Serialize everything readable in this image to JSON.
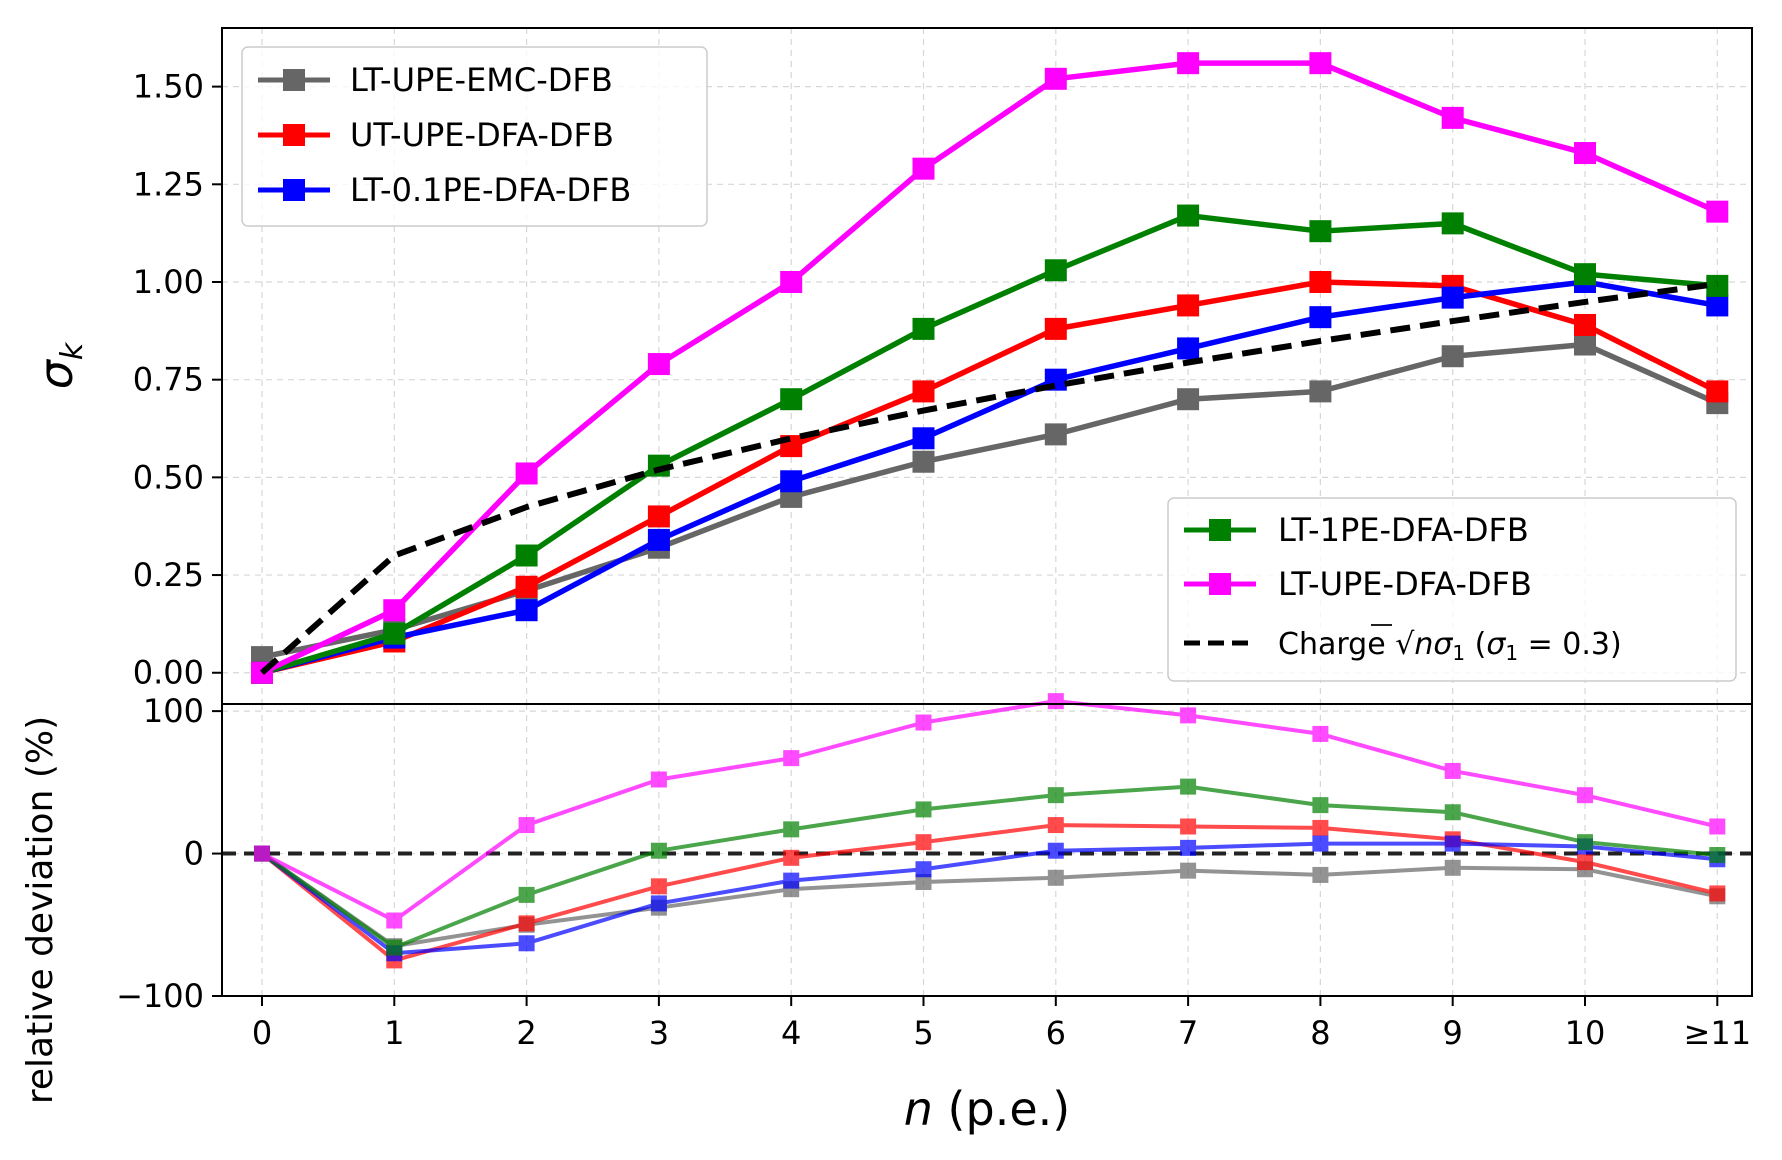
{
  "chart_data": [
    {
      "type": "line",
      "panel": "top",
      "title": "",
      "xlabel": "",
      "ylabel": "σ_k",
      "ylabel_display": "σ",
      "ylabel_sub": "k",
      "grid": true,
      "ylim": [
        -0.08,
        1.65
      ],
      "yticks": [
        0.0,
        0.25,
        0.5,
        0.75,
        1.0,
        1.25,
        1.5
      ],
      "ytick_labels": [
        "0.00",
        "0.25",
        "0.50",
        "0.75",
        "1.00",
        "1.25",
        "1.50"
      ],
      "series": [
        {
          "name": "LT-UPE-EMC-DFB",
          "color": "#666666",
          "marker": "square",
          "values": [
            0.04,
            0.11,
            0.21,
            0.32,
            0.45,
            0.54,
            0.61,
            0.7,
            0.72,
            0.81,
            0.84,
            0.69
          ]
        },
        {
          "name": "UT-UPE-DFA-DFB",
          "color": "#ff0000",
          "marker": "square",
          "values": [
            0.0,
            0.08,
            0.22,
            0.4,
            0.58,
            0.72,
            0.88,
            0.94,
            1.0,
            0.99,
            0.89,
            0.72
          ]
        },
        {
          "name": "LT-0.1PE-DFA-DFB",
          "color": "#0000ff",
          "marker": "square",
          "values": [
            0.0,
            0.09,
            0.16,
            0.34,
            0.49,
            0.6,
            0.75,
            0.83,
            0.91,
            0.96,
            1.0,
            0.94
          ]
        },
        {
          "name": "LT-1PE-DFA-DFB",
          "color": "#008000",
          "marker": "square",
          "values": [
            0.0,
            0.1,
            0.3,
            0.53,
            0.7,
            0.88,
            1.03,
            1.17,
            1.13,
            1.15,
            1.02,
            0.99
          ]
        },
        {
          "name": "LT-UPE-DFA-DFB",
          "color": "#ff00ff",
          "marker": "square",
          "values": [
            0.0,
            0.16,
            0.51,
            0.79,
            1.0,
            1.29,
            1.52,
            1.56,
            1.56,
            1.42,
            1.33,
            1.18
          ]
        },
        {
          "name": "Charge √nσ₁ (σ₁ = 0.3)",
          "color": "#000000",
          "style": "dashed",
          "values": [
            0.0,
            0.3,
            0.424,
            0.52,
            0.6,
            0.671,
            0.735,
            0.794,
            0.849,
            0.9,
            0.949,
            0.995
          ]
        }
      ],
      "legend_upper_left": {
        "placement": "upper-left",
        "entries": [
          "LT-UPE-EMC-DFB",
          "UT-UPE-DFA-DFB",
          "LT-0.1PE-DFA-DFB"
        ]
      },
      "legend_lower_right": {
        "placement": "lower-right",
        "entries": [
          "LT-1PE-DFA-DFB",
          "LT-UPE-DFA-DFB"
        ],
        "charge_label": {
          "prefix": "Charge ",
          "sqrt": "√",
          "n": "n",
          "sigma": "σ",
          "one": "1",
          "suffix_open": " (",
          "sigma2": "σ",
          "one2": "1",
          "eq": " = 0.3)"
        }
      }
    },
    {
      "type": "line",
      "panel": "bottom",
      "title": "",
      "xlabel": "n (p.e.)",
      "xlabel_italic": "n",
      "xlabel_rest": " (p.e.)",
      "ylabel": "relative deviation (%)",
      "grid": true,
      "ylim": [
        -100,
        105
      ],
      "yticks": [
        -100,
        0,
        100
      ],
      "ytick_labels": [
        "−100",
        "0",
        "100"
      ],
      "reference_line": 0,
      "series": [
        {
          "name": "LT-UPE-EMC-DFB",
          "color": "#666666",
          "values": [
            0,
            -65,
            -50,
            -38,
            -25,
            -20,
            -17,
            -12,
            -15,
            -10,
            -11,
            -30
          ]
        },
        {
          "name": "UT-UPE-DFA-DFB",
          "color": "#ff0000",
          "values": [
            0,
            -75,
            -49,
            -23,
            -3,
            8,
            20,
            19,
            18,
            10,
            -6,
            -28
          ]
        },
        {
          "name": "LT-0.1PE-DFA-DFB",
          "color": "#0000ff",
          "values": [
            0,
            -70,
            -63,
            -35,
            -19,
            -11,
            2,
            4,
            7,
            7,
            5,
            -4
          ]
        },
        {
          "name": "LT-1PE-DFA-DFB",
          "color": "#008000",
          "values": [
            0,
            -66,
            -29,
            2,
            17,
            31,
            41,
            47,
            34,
            29,
            8,
            -1
          ]
        },
        {
          "name": "LT-UPE-DFA-DFB",
          "color": "#ff00ff",
          "values": [
            0,
            -47,
            20,
            52,
            67,
            92,
            107,
            97,
            84,
            58,
            41,
            19
          ]
        }
      ]
    }
  ],
  "x_categories": [
    "0",
    "1",
    "2",
    "3",
    "4",
    "5",
    "6",
    "7",
    "8",
    "9",
    "10",
    "≥11"
  ]
}
